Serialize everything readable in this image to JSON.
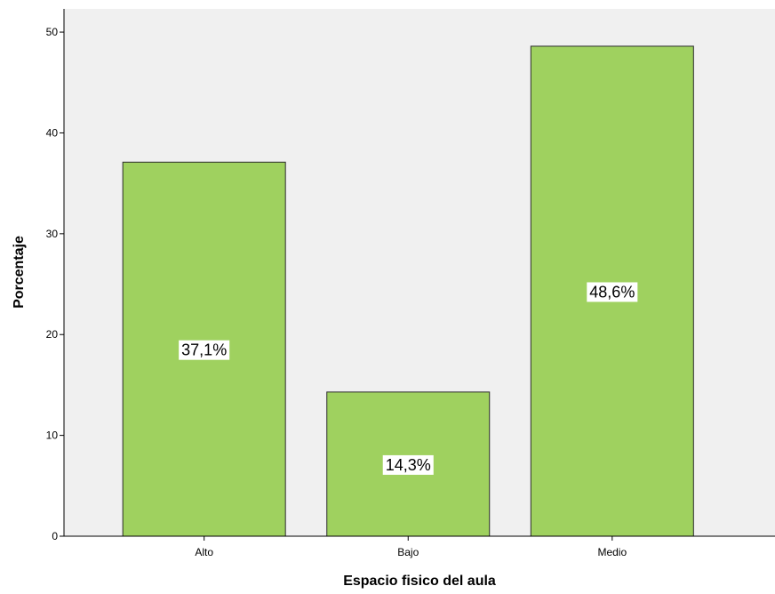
{
  "chart_data": {
    "type": "bar",
    "title": "",
    "xlabel": "Espacio fisico del aula",
    "ylabel": "Porcentaje",
    "categories": [
      "Alto",
      "Bajo",
      "Medio"
    ],
    "values": [
      37.1,
      14.3,
      48.6
    ],
    "data_labels": [
      "37,1%",
      "14,3%",
      "48,6%"
    ],
    "ylim": [
      0,
      52.3
    ],
    "yticks": [
      0,
      10,
      20,
      30,
      40,
      50
    ],
    "ytick_labels": [
      "0",
      "10",
      "20",
      "30",
      "40",
      "50"
    ],
    "grid": false,
    "legend": "none"
  },
  "colors": {
    "plot_background": "#f0f0f0",
    "bar_fill": "#9fd15f",
    "bar_stroke": "#2b2b2b",
    "frame": "#000000",
    "label_background": "#ffffff"
  }
}
